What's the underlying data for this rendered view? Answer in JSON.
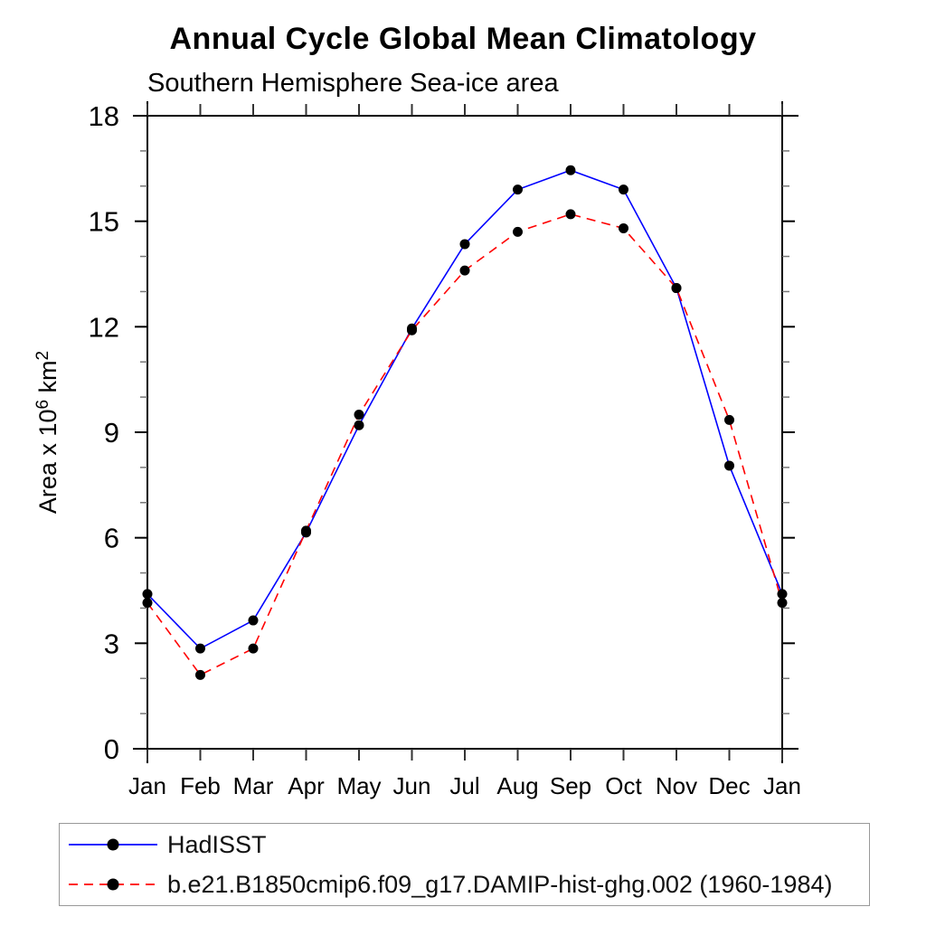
{
  "chart_data": {
    "type": "line",
    "title": "Annual Cycle Global Mean Climatology",
    "subtitle": "Southern Hemisphere Sea-ice area",
    "ylabel": "Area x 10^6 km^2",
    "ylabel_parts": [
      {
        "text": "Area x 10",
        "sup": false
      },
      {
        "text": "6",
        "sup": true
      },
      {
        "text": " km",
        "sup": false
      },
      {
        "text": "2",
        "sup": true
      }
    ],
    "categories": [
      "Jan",
      "Feb",
      "Mar",
      "Apr",
      "May",
      "Jun",
      "Jul",
      "Aug",
      "Sep",
      "Oct",
      "Nov",
      "Dec",
      "Jan"
    ],
    "ylim": [
      0,
      18
    ],
    "ytick_major": [
      0,
      3,
      6,
      9,
      12,
      15,
      18
    ],
    "ytick_minor_step": 1,
    "grid": false,
    "legend_position": "bottom-left-box",
    "marker": {
      "shape": "circle",
      "color": "#000000"
    },
    "axis_color": "#000000",
    "series": [
      {
        "name": "HadISST",
        "color": "#0000ff",
        "line_style": "solid",
        "values": [
          4.4,
          2.85,
          3.65,
          6.15,
          9.2,
          11.95,
          14.35,
          15.9,
          16.45,
          15.9,
          13.1,
          8.05,
          4.4
        ]
      },
      {
        "name": "b.e21.B1850cmip6.f09_g17.DAMIP-hist-ghg.002 (1960-1984)",
        "color": "#ff0000",
        "line_style": "dashed",
        "values": [
          4.15,
          2.1,
          2.85,
          6.2,
          9.5,
          11.9,
          13.6,
          14.7,
          15.2,
          14.8,
          13.1,
          9.35,
          4.15
        ]
      }
    ]
  }
}
